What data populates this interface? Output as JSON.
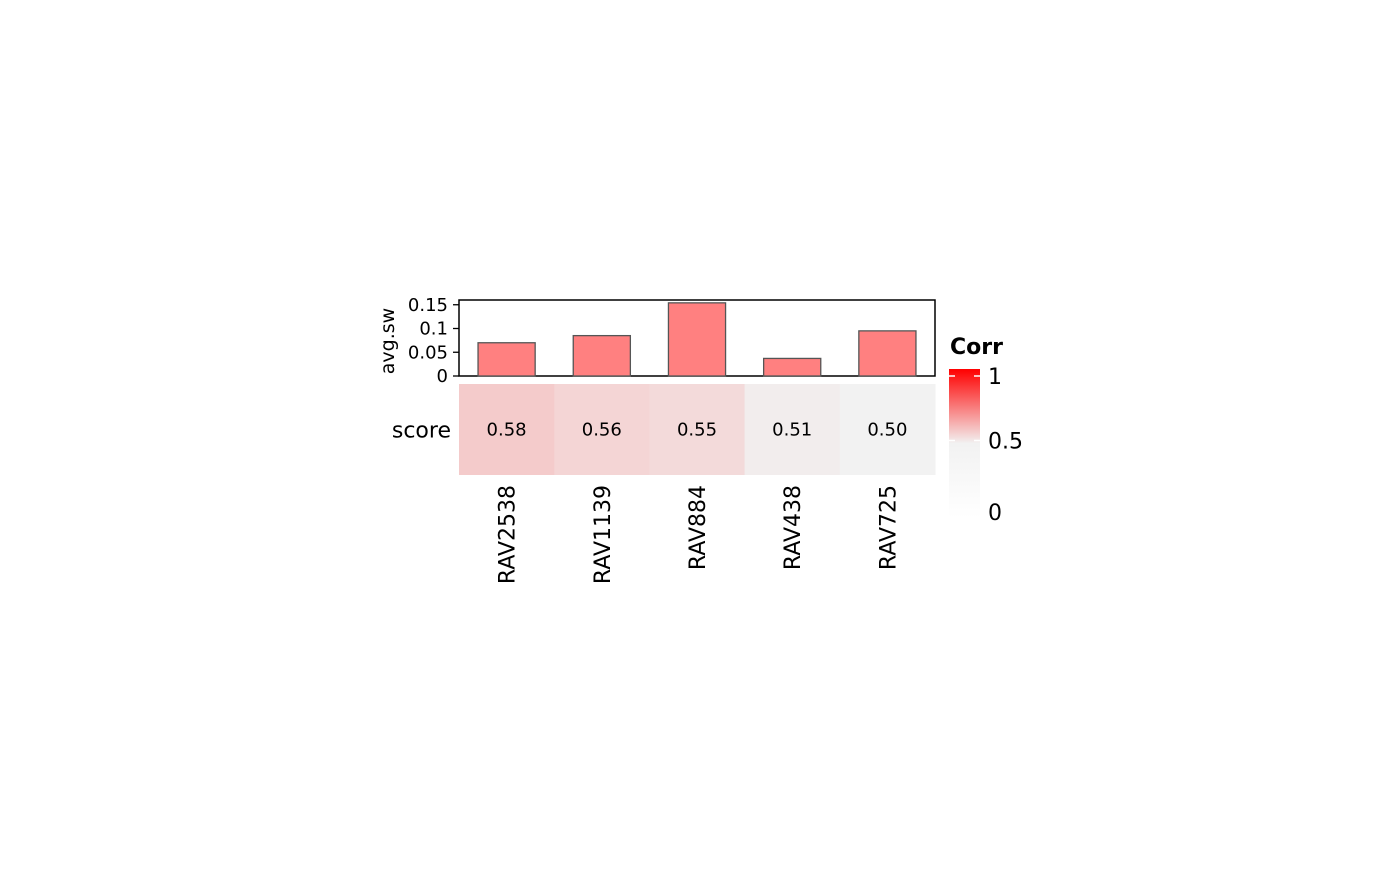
{
  "chart_data": [
    {
      "type": "bar",
      "categories": [
        "RAV2538",
        "RAV1139",
        "RAV884",
        "RAV438",
        "RAV725"
      ],
      "values": [
        0.07,
        0.085,
        0.154,
        0.037,
        0.095
      ],
      "ylabel": "avg.sw",
      "ylim": [
        0,
        0.16
      ],
      "yticks": [
        {
          "value": 0,
          "label": "0"
        },
        {
          "value": 0.05,
          "label": "0.05"
        },
        {
          "value": 0.1,
          "label": "0.1"
        },
        {
          "value": 0.15,
          "label": "0.15"
        }
      ],
      "bar_color": "#FF8080"
    },
    {
      "type": "heatmap",
      "row_label": "score",
      "categories": [
        "RAV2538",
        "RAV1139",
        "RAV884",
        "RAV438",
        "RAV725"
      ],
      "values": [
        0.58,
        0.56,
        0.55,
        0.51,
        0.5
      ],
      "cell_labels": [
        "0.58",
        "0.56",
        "0.55",
        "0.51",
        "0.50"
      ],
      "legend": {
        "title": "Corr",
        "range": [
          0,
          1
        ],
        "ticks": [
          "0",
          "0.5",
          "1"
        ],
        "colors": {
          "low": "#FFFFFF",
          "mid": "#F2F2F2",
          "high": "#FF0000"
        }
      }
    }
  ]
}
